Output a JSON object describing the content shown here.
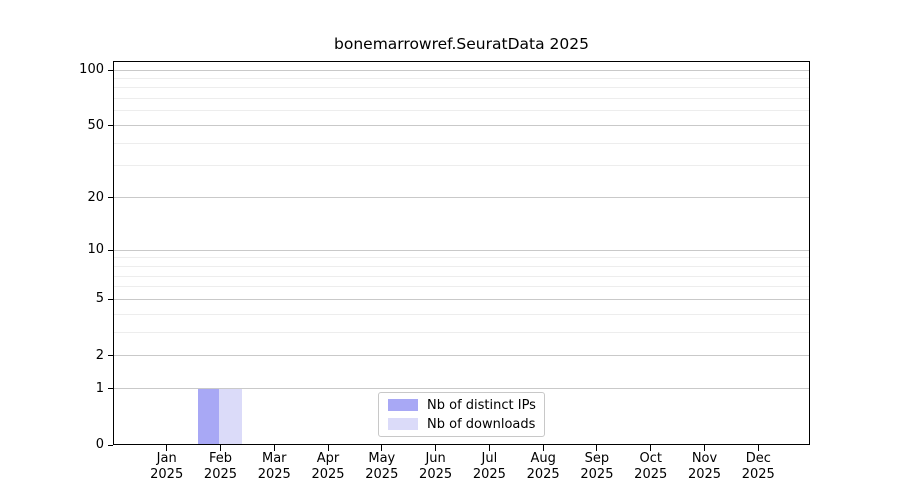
{
  "chart_data": {
    "type": "bar",
    "title": "bonemarrowref.SeuratData 2025",
    "categories": [
      "Jan",
      "Feb",
      "Mar",
      "Apr",
      "May",
      "Jun",
      "Jul",
      "Aug",
      "Sep",
      "Oct",
      "Nov",
      "Dec"
    ],
    "category_year": "2025",
    "series": [
      {
        "name": "Nb of distinct IPs",
        "color": "#a8a8f5",
        "values": [
          0,
          1,
          0,
          0,
          0,
          0,
          0,
          0,
          0,
          0,
          0,
          0
        ]
      },
      {
        "name": "Nb of downloads",
        "color": "#dbdbf9",
        "values": [
          0,
          1,
          0,
          0,
          0,
          0,
          0,
          0,
          0,
          0,
          0,
          0
        ]
      }
    ],
    "xlabel": "",
    "ylabel": "",
    "yscale": "log1p",
    "yticks": [
      0,
      1,
      2,
      5,
      10,
      20,
      50,
      100
    ],
    "yticks_minor": [
      3,
      4,
      6,
      7,
      8,
      9,
      30,
      40,
      60,
      70,
      80,
      90
    ],
    "ylim": [
      0,
      112
    ],
    "grid": "horizontal",
    "legend_position": "lower center"
  },
  "colors": {
    "bar_distinct_ips": "#a8a8f5",
    "bar_downloads": "#dbdbf9",
    "grid_major": "#c9c9c9",
    "grid_minor": "#ededed",
    "spine": "#000000",
    "background": "#ffffff"
  }
}
